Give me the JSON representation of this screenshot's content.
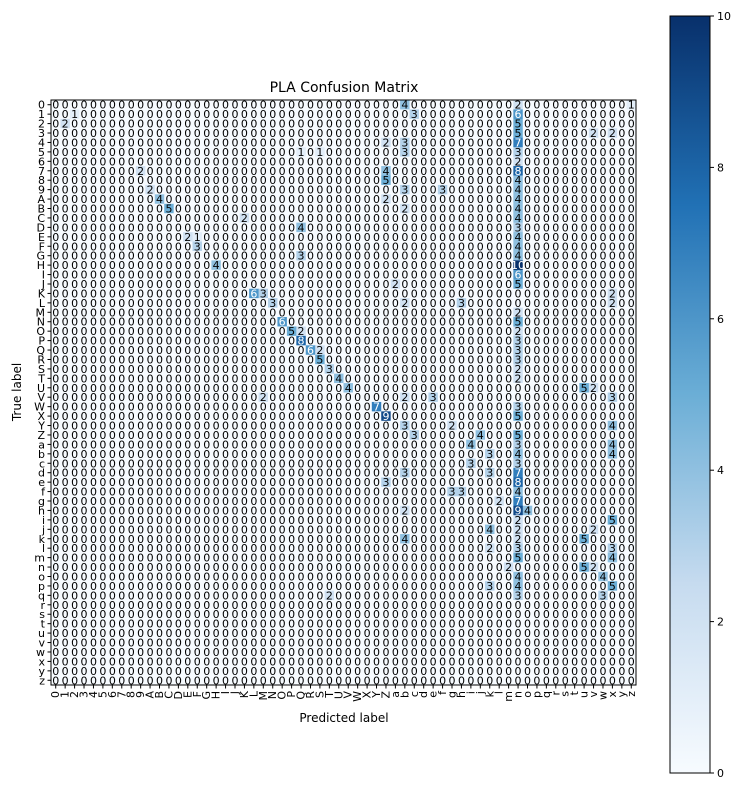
{
  "chart_data": {
    "type": "heatmap",
    "title": "PLA Confusion Matrix",
    "xlabel": "Predicted label",
    "ylabel": "True label",
    "classes": [
      "0",
      "1",
      "2",
      "3",
      "4",
      "5",
      "6",
      "7",
      "8",
      "9",
      "A",
      "B",
      "C",
      "D",
      "E",
      "F",
      "G",
      "H",
      "I",
      "J",
      "K",
      "L",
      "M",
      "N",
      "O",
      "P",
      "Q",
      "R",
      "S",
      "T",
      "U",
      "V",
      "W",
      "X",
      "Y",
      "Z",
      "a",
      "b",
      "c",
      "d",
      "e",
      "f",
      "g",
      "h",
      "i",
      "j",
      "k",
      "l",
      "m",
      "n",
      "o",
      "p",
      "q",
      "r",
      "s",
      "t",
      "u",
      "v",
      "w",
      "x",
      "y",
      "z"
    ],
    "colormap": "Blues",
    "color_low": "#f7fbff",
    "color_high": "#08306b",
    "colorbar_range": [
      0,
      10
    ],
    "colorbar_ticks": [
      "0",
      "2",
      "4",
      "6",
      "8",
      "10"
    ],
    "sparse_entries": [
      [
        0,
        37,
        4
      ],
      [
        0,
        49,
        2
      ],
      [
        0,
        61,
        1
      ],
      [
        1,
        1,
        0
      ],
      [
        1,
        2,
        1
      ],
      [
        1,
        38,
        3
      ],
      [
        1,
        49,
        6
      ],
      [
        2,
        1,
        2
      ],
      [
        2,
        49,
        5
      ],
      [
        3,
        49,
        5
      ],
      [
        3,
        57,
        2
      ],
      [
        3,
        59,
        2
      ],
      [
        4,
        35,
        2
      ],
      [
        4,
        37,
        3
      ],
      [
        4,
        49,
        7
      ],
      [
        5,
        26,
        1
      ],
      [
        5,
        28,
        1
      ],
      [
        5,
        37,
        3
      ],
      [
        5,
        49,
        3
      ],
      [
        6,
        49,
        2
      ],
      [
        7,
        9,
        2
      ],
      [
        7,
        35,
        4
      ],
      [
        7,
        49,
        8
      ],
      [
        8,
        35,
        5
      ],
      [
        8,
        49,
        4
      ],
      [
        9,
        10,
        2
      ],
      [
        9,
        37,
        3
      ],
      [
        9,
        41,
        3
      ],
      [
        9,
        49,
        4
      ],
      [
        10,
        11,
        4
      ],
      [
        10,
        35,
        2
      ],
      [
        10,
        49,
        4
      ],
      [
        11,
        12,
        5
      ],
      [
        11,
        37,
        2
      ],
      [
        11,
        49,
        4
      ],
      [
        12,
        20,
        2
      ],
      [
        12,
        49,
        4
      ],
      [
        13,
        26,
        4
      ],
      [
        13,
        49,
        3
      ],
      [
        14,
        14,
        2
      ],
      [
        14,
        15,
        1
      ],
      [
        14,
        49,
        4
      ],
      [
        15,
        15,
        3
      ],
      [
        15,
        49,
        4
      ],
      [
        16,
        26,
        3
      ],
      [
        16,
        49,
        4
      ],
      [
        17,
        17,
        4
      ],
      [
        17,
        49,
        10
      ],
      [
        18,
        49,
        6
      ],
      [
        19,
        36,
        2
      ],
      [
        19,
        49,
        5
      ],
      [
        20,
        21,
        6
      ],
      [
        20,
        22,
        3
      ],
      [
        20,
        59,
        2
      ],
      [
        21,
        23,
        3
      ],
      [
        21,
        37,
        2
      ],
      [
        21,
        43,
        3
      ],
      [
        21,
        59,
        2
      ],
      [
        22,
        49,
        2
      ],
      [
        23,
        24,
        6
      ],
      [
        23,
        49,
        5
      ],
      [
        24,
        25,
        5
      ],
      [
        24,
        26,
        2
      ],
      [
        24,
        49,
        2
      ],
      [
        25,
        26,
        8
      ],
      [
        25,
        49,
        3
      ],
      [
        26,
        27,
        6
      ],
      [
        26,
        28,
        2
      ],
      [
        26,
        49,
        3
      ],
      [
        27,
        28,
        5
      ],
      [
        27,
        49,
        3
      ],
      [
        28,
        29,
        3
      ],
      [
        28,
        49,
        2
      ],
      [
        29,
        30,
        4
      ],
      [
        29,
        49,
        2
      ],
      [
        30,
        31,
        4
      ],
      [
        30,
        56,
        5
      ],
      [
        30,
        57,
        2
      ],
      [
        31,
        22,
        2
      ],
      [
        31,
        37,
        2
      ],
      [
        31,
        40,
        3
      ],
      [
        31,
        59,
        3
      ],
      [
        32,
        34,
        7
      ],
      [
        32,
        49,
        3
      ],
      [
        33,
        35,
        9
      ],
      [
        33,
        49,
        5
      ],
      [
        34,
        37,
        3
      ],
      [
        34,
        42,
        2
      ],
      [
        34,
        59,
        4
      ],
      [
        35,
        38,
        3
      ],
      [
        35,
        45,
        4
      ],
      [
        35,
        49,
        5
      ],
      [
        36,
        44,
        4
      ],
      [
        36,
        49,
        3
      ],
      [
        36,
        59,
        4
      ],
      [
        37,
        46,
        3
      ],
      [
        37,
        49,
        4
      ],
      [
        37,
        59,
        4
      ],
      [
        38,
        44,
        3
      ],
      [
        38,
        49,
        3
      ],
      [
        39,
        37,
        3
      ],
      [
        39,
        46,
        3
      ],
      [
        39,
        49,
        7
      ],
      [
        40,
        35,
        3
      ],
      [
        40,
        49,
        8
      ],
      [
        41,
        42,
        3
      ],
      [
        41,
        43,
        3
      ],
      [
        41,
        49,
        4
      ],
      [
        42,
        47,
        2
      ],
      [
        42,
        49,
        7
      ],
      [
        43,
        37,
        2
      ],
      [
        43,
        49,
        9
      ],
      [
        43,
        50,
        4
      ],
      [
        44,
        49,
        2
      ],
      [
        44,
        59,
        5
      ],
      [
        45,
        46,
        4
      ],
      [
        45,
        49,
        2
      ],
      [
        45,
        57,
        2
      ],
      [
        46,
        37,
        4
      ],
      [
        46,
        49,
        2
      ],
      [
        46,
        56,
        5
      ],
      [
        47,
        46,
        2
      ],
      [
        47,
        49,
        3
      ],
      [
        47,
        59,
        3
      ],
      [
        48,
        49,
        5
      ],
      [
        48,
        59,
        4
      ],
      [
        49,
        48,
        2
      ],
      [
        49,
        56,
        5
      ],
      [
        49,
        57,
        2
      ],
      [
        50,
        49,
        4
      ],
      [
        50,
        58,
        4
      ],
      [
        51,
        46,
        3
      ],
      [
        51,
        49,
        4
      ],
      [
        51,
        59,
        5
      ],
      [
        52,
        29,
        2
      ],
      [
        52,
        49,
        3
      ],
      [
        52,
        58,
        3
      ]
    ]
  }
}
